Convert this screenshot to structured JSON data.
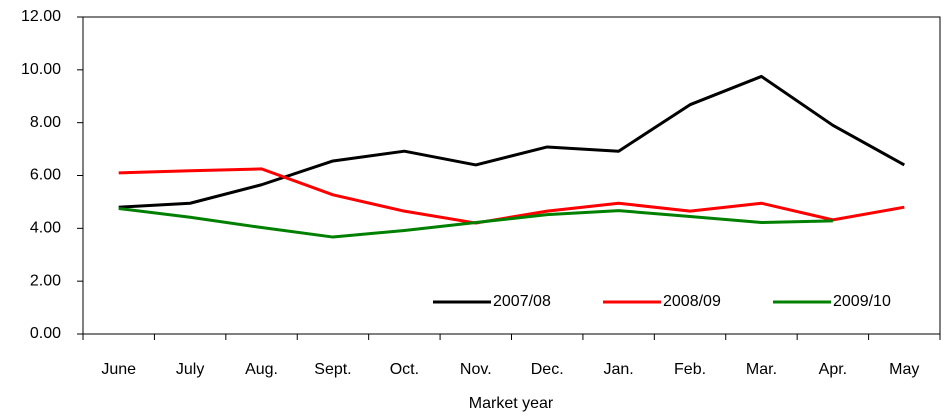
{
  "chart_data": {
    "type": "line",
    "x_label": "Market year",
    "categories": [
      "June",
      "July",
      "Aug.",
      "Sept.",
      "Oct.",
      "Nov.",
      "Dec.",
      "Jan.",
      "Feb.",
      "Mar.",
      "Apr.",
      "May"
    ],
    "series": [
      {
        "name": "2007/08",
        "color": "#000000",
        "values": [
          4.8,
          4.95,
          5.65,
          6.55,
          6.92,
          6.4,
          7.08,
          6.92,
          8.68,
          9.75,
          7.9,
          6.4
        ]
      },
      {
        "name": "2008/09",
        "color": "#ff0000",
        "values": [
          6.1,
          6.18,
          6.25,
          5.27,
          4.65,
          4.2,
          4.65,
          4.95,
          4.65,
          4.95,
          4.32,
          4.8
        ]
      },
      {
        "name": "2009/10",
        "color": "#008000",
        "values": [
          4.75,
          4.42,
          4.03,
          3.67,
          3.92,
          4.22,
          4.52,
          4.67,
          4.45,
          4.22,
          4.28,
          null
        ]
      }
    ],
    "ylim": [
      0,
      12
    ],
    "yticks": [
      {
        "value": 0,
        "label": "0.00"
      },
      {
        "value": 2,
        "label": "2.00"
      },
      {
        "value": 4,
        "label": "4.00"
      },
      {
        "value": 6,
        "label": "6.00"
      },
      {
        "value": 8,
        "label": "8.00"
      },
      {
        "value": 10,
        "label": "10.00"
      },
      {
        "value": 12,
        "label": "12.00"
      }
    ],
    "legend": "lower right",
    "grid": false
  }
}
